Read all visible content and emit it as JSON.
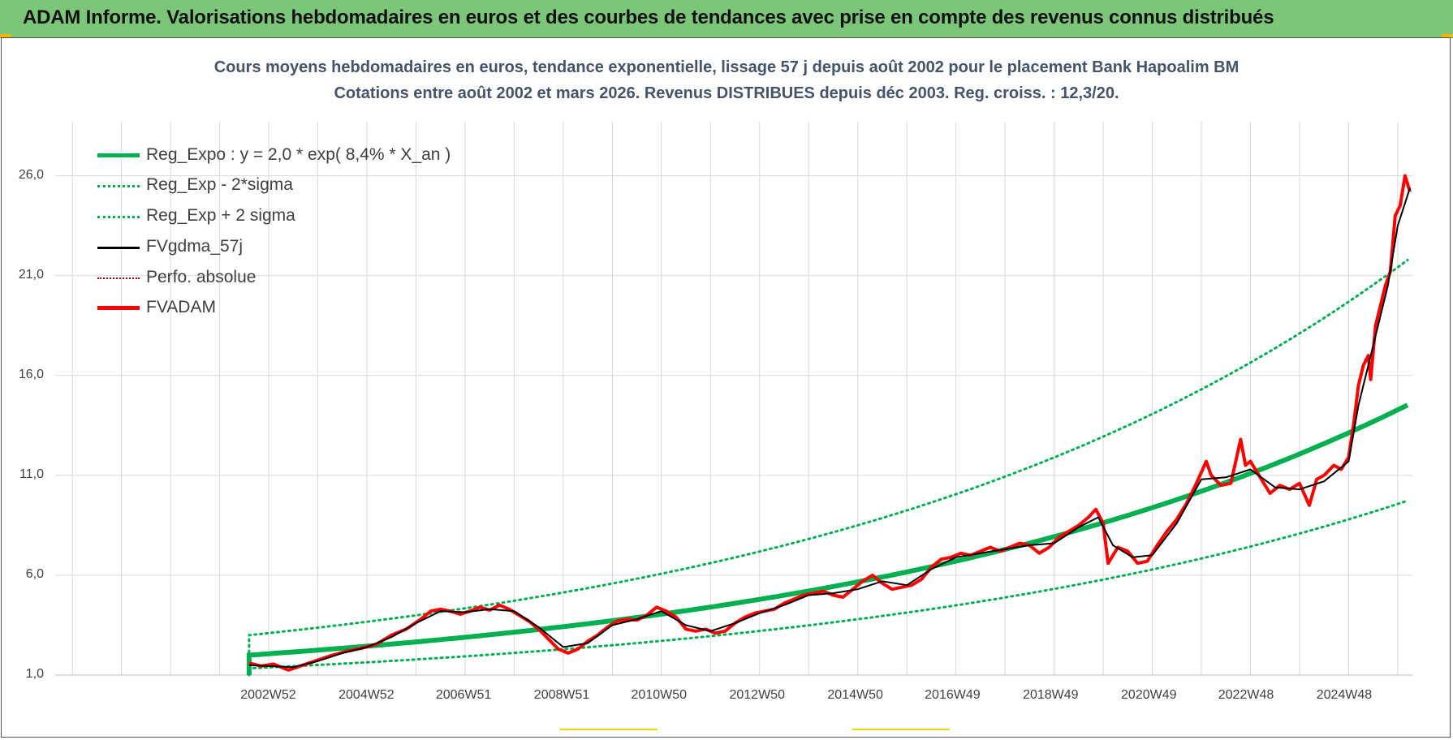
{
  "banner": {
    "title": "ADAM Informe. Valorisations hebdomadaires en euros et des courbes de tendances avec prise en compte des revenus connus distribués"
  },
  "colors": {
    "banner_bg": "#7cc67a",
    "reg_green": "#00b050",
    "fvadam_red": "#ff0000",
    "fvgdma_black": "#000000",
    "title_text": "#44546a"
  },
  "chart_data": {
    "type": "line",
    "title": "Cours moyens hebdomadaires en euros, tendance exponentielle, lissage 57 j depuis août 2002 pour le placement Bank Hapoalim BM",
    "subtitle": "Cotations entre août 2002 et mars 2026.  Revenus DISTRIBUES depuis déc 2003. Reg. croiss. : 12,3/20.",
    "x_range": [
      1998.65,
      2026.3
    ],
    "x_ticks": [
      {
        "label": "2002W52",
        "x": 2002.99
      },
      {
        "label": "2004W52",
        "x": 2004.99
      },
      {
        "label": "2006W51",
        "x": 2006.97
      },
      {
        "label": "2008W51",
        "x": 2008.97
      },
      {
        "label": "2010W50",
        "x": 2010.95
      },
      {
        "label": "2012W50",
        "x": 2012.95
      },
      {
        "label": "2014W50",
        "x": 2014.95
      },
      {
        "label": "2016W49",
        "x": 2016.93
      },
      {
        "label": "2018W49",
        "x": 2018.93
      },
      {
        "label": "2020W49",
        "x": 2020.93
      },
      {
        "label": "2022W48",
        "x": 2022.91
      },
      {
        "label": "2024W48",
        "x": 2024.91
      }
    ],
    "ylim": [
      1.0,
      28.3
    ],
    "y_ticks": [
      1.0,
      6.0,
      11.0,
      16.0,
      21.0,
      26.0
    ],
    "y_tick_labels": [
      "1,0",
      "6,0",
      "11,0",
      "16,0",
      "21,0",
      "26,0"
    ],
    "grid": true,
    "legend_position": "top-left",
    "regression": {
      "a": 2.0,
      "rate": 0.084,
      "x0": 2002.6,
      "lower_factor": 0.67,
      "upper_factor": 1.5
    },
    "series": [
      {
        "name": "Reg_Expo : y = 2,0 * exp( 8,4% *  X_an )",
        "style": "solid-thick",
        "color": "#00b050"
      },
      {
        "name": "Reg_Exp - 2*sigma",
        "style": "dotted",
        "color": "#00b050"
      },
      {
        "name": "Reg_Exp + 2 sigma",
        "style": "dotted",
        "color": "#00b050"
      },
      {
        "name": "FVgdma_57j",
        "style": "solid-thin",
        "color": "#000000"
      },
      {
        "name": "Perfo. absolue",
        "style": "dotted-thin",
        "color": "#c00000"
      },
      {
        "name": "FVADAM",
        "style": "solid-thick",
        "color": "#ff0000",
        "points": [
          [
            2002.6,
            1.6
          ],
          [
            2002.85,
            1.45
          ],
          [
            2003.1,
            1.55
          ],
          [
            2003.4,
            1.25
          ],
          [
            2003.7,
            1.5
          ],
          [
            2004.0,
            1.75
          ],
          [
            2004.3,
            2.0
          ],
          [
            2004.6,
            2.2
          ],
          [
            2004.9,
            2.35
          ],
          [
            2005.2,
            2.55
          ],
          [
            2005.5,
            3.0
          ],
          [
            2005.8,
            3.3
          ],
          [
            2006.1,
            3.8
          ],
          [
            2006.3,
            4.2
          ],
          [
            2006.5,
            4.3
          ],
          [
            2006.7,
            4.2
          ],
          [
            2006.9,
            4.05
          ],
          [
            2007.1,
            4.2
          ],
          [
            2007.3,
            4.4
          ],
          [
            2007.5,
            4.25
          ],
          [
            2007.7,
            4.5
          ],
          [
            2007.9,
            4.3
          ],
          [
            2008.1,
            4.0
          ],
          [
            2008.3,
            3.7
          ],
          [
            2008.5,
            3.3
          ],
          [
            2008.7,
            2.8
          ],
          [
            2008.9,
            2.3
          ],
          [
            2009.1,
            2.1
          ],
          [
            2009.3,
            2.3
          ],
          [
            2009.5,
            2.7
          ],
          [
            2009.7,
            3.0
          ],
          [
            2009.9,
            3.4
          ],
          [
            2010.1,
            3.7
          ],
          [
            2010.3,
            3.8
          ],
          [
            2010.5,
            3.75
          ],
          [
            2010.7,
            4.0
          ],
          [
            2010.9,
            4.4
          ],
          [
            2011.1,
            4.2
          ],
          [
            2011.3,
            3.9
          ],
          [
            2011.5,
            3.3
          ],
          [
            2011.7,
            3.2
          ],
          [
            2011.9,
            3.3
          ],
          [
            2012.1,
            3.1
          ],
          [
            2012.3,
            3.2
          ],
          [
            2012.5,
            3.6
          ],
          [
            2012.7,
            3.9
          ],
          [
            2012.9,
            4.1
          ],
          [
            2013.1,
            4.2
          ],
          [
            2013.3,
            4.3
          ],
          [
            2013.5,
            4.6
          ],
          [
            2013.7,
            4.8
          ],
          [
            2013.9,
            5.0
          ],
          [
            2014.1,
            5.1
          ],
          [
            2014.3,
            5.2
          ],
          [
            2014.5,
            5.0
          ],
          [
            2014.7,
            4.9
          ],
          [
            2014.9,
            5.3
          ],
          [
            2015.1,
            5.7
          ],
          [
            2015.3,
            6.0
          ],
          [
            2015.5,
            5.6
          ],
          [
            2015.7,
            5.3
          ],
          [
            2015.9,
            5.4
          ],
          [
            2016.1,
            5.5
          ],
          [
            2016.3,
            5.8
          ],
          [
            2016.5,
            6.4
          ],
          [
            2016.7,
            6.8
          ],
          [
            2016.9,
            6.9
          ],
          [
            2017.1,
            7.1
          ],
          [
            2017.3,
            7.0
          ],
          [
            2017.5,
            7.2
          ],
          [
            2017.7,
            7.4
          ],
          [
            2017.9,
            7.2
          ],
          [
            2018.1,
            7.4
          ],
          [
            2018.3,
            7.6
          ],
          [
            2018.5,
            7.5
          ],
          [
            2018.7,
            7.1
          ],
          [
            2018.9,
            7.4
          ],
          [
            2019.1,
            7.9
          ],
          [
            2019.3,
            8.2
          ],
          [
            2019.5,
            8.5
          ],
          [
            2019.7,
            8.9
          ],
          [
            2019.85,
            9.3
          ],
          [
            2020.0,
            8.6
          ],
          [
            2020.1,
            6.6
          ],
          [
            2020.3,
            7.4
          ],
          [
            2020.5,
            7.2
          ],
          [
            2020.7,
            6.6
          ],
          [
            2020.9,
            6.7
          ],
          [
            2021.1,
            7.5
          ],
          [
            2021.3,
            8.2
          ],
          [
            2021.5,
            8.8
          ],
          [
            2021.7,
            9.6
          ],
          [
            2021.9,
            10.6
          ],
          [
            2022.1,
            11.7
          ],
          [
            2022.2,
            11.0
          ],
          [
            2022.4,
            10.5
          ],
          [
            2022.6,
            10.6
          ],
          [
            2022.8,
            12.8
          ],
          [
            2022.9,
            11.5
          ],
          [
            2023.0,
            11.7
          ],
          [
            2023.2,
            10.9
          ],
          [
            2023.4,
            10.1
          ],
          [
            2023.6,
            10.5
          ],
          [
            2023.8,
            10.3
          ],
          [
            2024.0,
            10.6
          ],
          [
            2024.2,
            9.5
          ],
          [
            2024.35,
            10.8
          ],
          [
            2024.5,
            11.0
          ],
          [
            2024.7,
            11.5
          ],
          [
            2024.85,
            11.3
          ],
          [
            2025.0,
            11.9
          ],
          [
            2025.1,
            13.5
          ],
          [
            2025.2,
            15.5
          ],
          [
            2025.3,
            16.5
          ],
          [
            2025.4,
            17.0
          ],
          [
            2025.45,
            15.8
          ],
          [
            2025.55,
            18.5
          ],
          [
            2025.65,
            19.5
          ],
          [
            2025.75,
            20.5
          ],
          [
            2025.85,
            21.2
          ],
          [
            2025.95,
            24.0
          ],
          [
            2026.05,
            24.5
          ],
          [
            2026.15,
            26.0
          ],
          [
            2026.25,
            25.2
          ]
        ]
      },
      {
        "name": "FVgdma_57j_data",
        "points": [
          [
            2002.6,
            1.5
          ],
          [
            2003.0,
            1.45
          ],
          [
            2003.5,
            1.4
          ],
          [
            2004.0,
            1.7
          ],
          [
            2004.5,
            2.1
          ],
          [
            2005.0,
            2.4
          ],
          [
            2005.5,
            2.9
          ],
          [
            2006.0,
            3.6
          ],
          [
            2006.5,
            4.2
          ],
          [
            2007.0,
            4.15
          ],
          [
            2007.5,
            4.3
          ],
          [
            2008.0,
            4.2
          ],
          [
            2008.5,
            3.4
          ],
          [
            2009.0,
            2.4
          ],
          [
            2009.5,
            2.6
          ],
          [
            2010.0,
            3.5
          ],
          [
            2010.5,
            3.8
          ],
          [
            2011.0,
            4.2
          ],
          [
            2011.5,
            3.5
          ],
          [
            2012.0,
            3.2
          ],
          [
            2012.5,
            3.6
          ],
          [
            2013.0,
            4.1
          ],
          [
            2013.5,
            4.5
          ],
          [
            2014.0,
            5.0
          ],
          [
            2014.5,
            5.1
          ],
          [
            2015.0,
            5.3
          ],
          [
            2015.5,
            5.7
          ],
          [
            2016.0,
            5.5
          ],
          [
            2016.5,
            6.3
          ],
          [
            2017.0,
            6.9
          ],
          [
            2017.5,
            7.1
          ],
          [
            2018.0,
            7.3
          ],
          [
            2018.5,
            7.5
          ],
          [
            2019.0,
            7.6
          ],
          [
            2019.5,
            8.4
          ],
          [
            2019.9,
            8.9
          ],
          [
            2020.2,
            7.5
          ],
          [
            2020.6,
            6.9
          ],
          [
            2021.0,
            7.0
          ],
          [
            2021.5,
            8.6
          ],
          [
            2022.0,
            10.8
          ],
          [
            2022.5,
            10.9
          ],
          [
            2023.0,
            11.3
          ],
          [
            2023.5,
            10.4
          ],
          [
            2024.0,
            10.3
          ],
          [
            2024.5,
            10.7
          ],
          [
            2025.0,
            11.7
          ],
          [
            2025.2,
            14.5
          ],
          [
            2025.4,
            16.5
          ],
          [
            2025.6,
            18.5
          ],
          [
            2025.8,
            20.5
          ],
          [
            2026.0,
            23.5
          ],
          [
            2026.25,
            25.4
          ]
        ]
      }
    ]
  }
}
